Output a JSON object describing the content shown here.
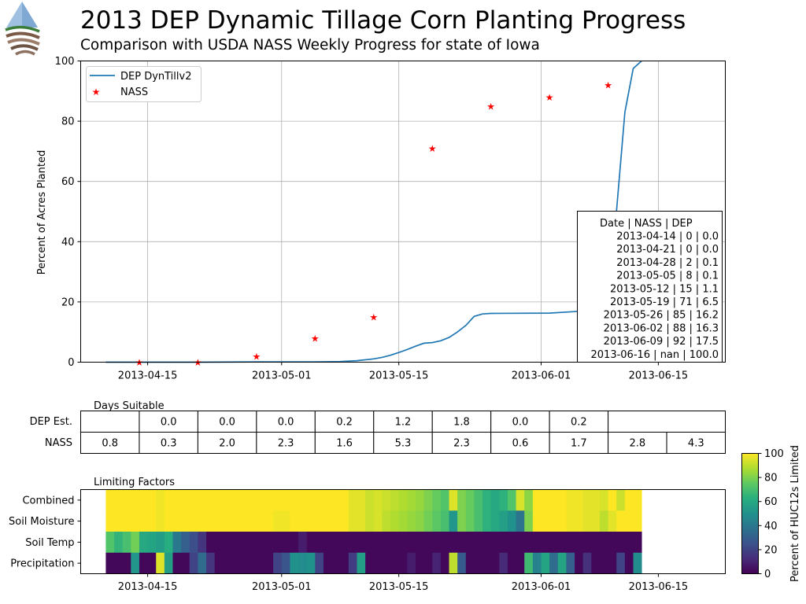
{
  "header": {
    "title": "2013 DEP Dynamic Tillage Corn Planting Progress",
    "subtitle": "Comparison with USDA NASS Weekly Progress for state of Iowa"
  },
  "colors": {
    "dep_line": "#1f77b4",
    "nass_marker": "#ff0000",
    "grid": "#b0b0b0"
  },
  "chart_data": [
    {
      "type": "line",
      "title": "2013 DEP Dynamic Tillage Corn Planting Progress",
      "ylabel": "Percent of Acres Planted",
      "ylim": [
        0,
        100
      ],
      "xlim": [
        "2013-04-07",
        "2013-06-23"
      ],
      "yticks": [
        0,
        20,
        40,
        60,
        80,
        100
      ],
      "xticks": [
        {
          "date": "2013-04-15",
          "label": "2013-04-15"
        },
        {
          "date": "2013-05-01",
          "label": "2013-05-01"
        },
        {
          "date": "2013-05-15",
          "label": "2013-05-15"
        },
        {
          "date": "2013-06-01",
          "label": "2013-06-01"
        },
        {
          "date": "2013-06-15",
          "label": "2013-06-15"
        }
      ],
      "grid": true,
      "legend": {
        "placement": "top-left",
        "entries": [
          "DEP DynTillv2",
          "NASS"
        ]
      },
      "series": [
        {
          "name": "DEP DynTillv2",
          "kind": "line",
          "points": [
            [
              "2013-04-10",
              0.0
            ],
            [
              "2013-04-14",
              0.0
            ],
            [
              "2013-04-21",
              0.0
            ],
            [
              "2013-04-28",
              0.1
            ],
            [
              "2013-05-05",
              0.1
            ],
            [
              "2013-05-08",
              0.2
            ],
            [
              "2013-05-10",
              0.5
            ],
            [
              "2013-05-12",
              1.1
            ],
            [
              "2013-05-13",
              1.6
            ],
            [
              "2013-05-14",
              2.3
            ],
            [
              "2013-05-15",
              3.2
            ],
            [
              "2013-05-16",
              4.2
            ],
            [
              "2013-05-17",
              5.3
            ],
            [
              "2013-05-18",
              6.3
            ],
            [
              "2013-05-19",
              6.5
            ],
            [
              "2013-05-20",
              7.1
            ],
            [
              "2013-05-21",
              8.2
            ],
            [
              "2013-05-22",
              10.0
            ],
            [
              "2013-05-23",
              12.2
            ],
            [
              "2013-05-24",
              15.2
            ],
            [
              "2013-05-25",
              16.0
            ],
            [
              "2013-05-26",
              16.2
            ],
            [
              "2013-06-02",
              16.3
            ],
            [
              "2013-06-05",
              16.8
            ],
            [
              "2013-06-07",
              17.2
            ],
            [
              "2013-06-09",
              17.5
            ],
            [
              "2013-06-10",
              50.0
            ],
            [
              "2013-06-11",
              83.0
            ],
            [
              "2013-06-12",
              97.5
            ],
            [
              "2013-06-13",
              100.0
            ]
          ]
        },
        {
          "name": "NASS",
          "kind": "scatter",
          "points": [
            [
              "2013-04-14",
              0
            ],
            [
              "2013-04-21",
              0
            ],
            [
              "2013-04-28",
              2
            ],
            [
              "2013-05-05",
              8
            ],
            [
              "2013-05-12",
              15
            ],
            [
              "2013-05-19",
              71
            ],
            [
              "2013-05-26",
              85
            ],
            [
              "2013-06-02",
              88
            ],
            [
              "2013-06-09",
              92
            ]
          ]
        }
      ],
      "annotation_table": {
        "header": "Date       | NASS | DEP",
        "rows": [
          "2013-04-14 | 0 | 0.0",
          "2013-04-21 | 0 | 0.0",
          "2013-04-28 | 2 | 0.1",
          "2013-05-05 | 8 | 0.1",
          "2013-05-12 | 15 | 1.1",
          "2013-05-19 | 71 | 6.5",
          "2013-05-26 | 85 | 16.2",
          "2013-06-02 | 88 | 16.3",
          "2013-06-09 | 92 | 17.5",
          "2013-06-16 | nan | 100.0"
        ]
      }
    },
    {
      "type": "table",
      "title": "Days Suitable",
      "row_labels": [
        "DEP Est.",
        "NASS"
      ],
      "week_starts": [
        "2013-04-07",
        "2013-04-14",
        "2013-04-21",
        "2013-04-28",
        "2013-05-05",
        "2013-05-12",
        "2013-05-19",
        "2013-05-26",
        "2013-06-02",
        "2013-06-09",
        "2013-06-16",
        "2013-06-23"
      ],
      "dep_est": [
        "",
        "0.0",
        "0.0",
        "0.0",
        "0.2",
        "1.2",
        "1.8",
        "0.0",
        "0.2",
        null,
        null,
        null
      ],
      "nass": [
        "0.8",
        "0.3",
        "2.0",
        "2.3",
        "1.6",
        "5.3",
        "2.3",
        "0.6",
        "1.7",
        "2.8",
        "4.3",
        ""
      ]
    },
    {
      "type": "heatmap",
      "title": "Limiting Factors",
      "rows": [
        "Combined",
        "Soil Moisture",
        "Soil Temp",
        "Precipitation"
      ],
      "start_date": "2013-04-10",
      "x_range": [
        "2013-04-07",
        "2013-06-23"
      ],
      "xticks": [
        "2013-04-15",
        "2013-05-01",
        "2013-05-15",
        "2013-06-01",
        "2013-06-15"
      ],
      "colorbar": {
        "label": "Percent of HUC12s Limited",
        "min": 0,
        "max": 100,
        "ticks": [
          0,
          20,
          40,
          60,
          80,
          100
        ]
      },
      "values": {
        "Combined": [
          100,
          100,
          100,
          100,
          100,
          100,
          98,
          100,
          100,
          100,
          100,
          100,
          100,
          100,
          100,
          100,
          100,
          100,
          100,
          100,
          100,
          100,
          100,
          100,
          100,
          100,
          100,
          100,
          100,
          96,
          96,
          92,
          94,
          92,
          90,
          88,
          86,
          84,
          80,
          76,
          72,
          95,
          80,
          76,
          70,
          64,
          60,
          64,
          72,
          94,
          82,
          100,
          100,
          100,
          100,
          98,
          98,
          96,
          96,
          94,
          100,
          92,
          100,
          100
        ],
        "Soil Moisture": [
          100,
          100,
          100,
          100,
          100,
          100,
          98,
          100,
          100,
          100,
          100,
          100,
          100,
          100,
          100,
          100,
          100,
          100,
          100,
          100,
          98,
          98,
          100,
          100,
          100,
          100,
          100,
          100,
          100,
          96,
          96,
          92,
          94,
          90,
          88,
          86,
          84,
          82,
          78,
          74,
          70,
          52,
          80,
          76,
          70,
          64,
          60,
          56,
          50,
          38,
          80,
          100,
          100,
          100,
          100,
          98,
          98,
          96,
          96,
          90,
          96,
          100,
          100,
          100
        ],
        "Soil Temp": [
          72,
          65,
          70,
          78,
          60,
          58,
          55,
          62,
          40,
          30,
          24,
          15,
          2,
          2,
          2,
          2,
          2,
          2,
          2,
          2,
          2,
          2,
          2,
          8,
          2,
          2,
          2,
          2,
          2,
          2,
          2,
          2,
          2,
          2,
          2,
          2,
          2,
          2,
          2,
          2,
          2,
          2,
          2,
          2,
          2,
          2,
          2,
          2,
          2,
          2,
          2,
          2,
          2,
          2,
          2,
          2,
          2,
          2,
          2,
          2,
          2,
          2,
          2,
          2
        ],
        "Precipitation": [
          2,
          2,
          2,
          52,
          2,
          2,
          95,
          55,
          2,
          2,
          20,
          35,
          15,
          2,
          2,
          2,
          2,
          2,
          2,
          2,
          20,
          26,
          50,
          48,
          50,
          20,
          2,
          2,
          2,
          18,
          55,
          2,
          2,
          2,
          2,
          2,
          8,
          2,
          2,
          10,
          2,
          90,
          28,
          2,
          2,
          2,
          2,
          12,
          2,
          2,
          68,
          44,
          58,
          35,
          58,
          30,
          2,
          14,
          2,
          2,
          2,
          20,
          2,
          48
        ]
      }
    }
  ]
}
